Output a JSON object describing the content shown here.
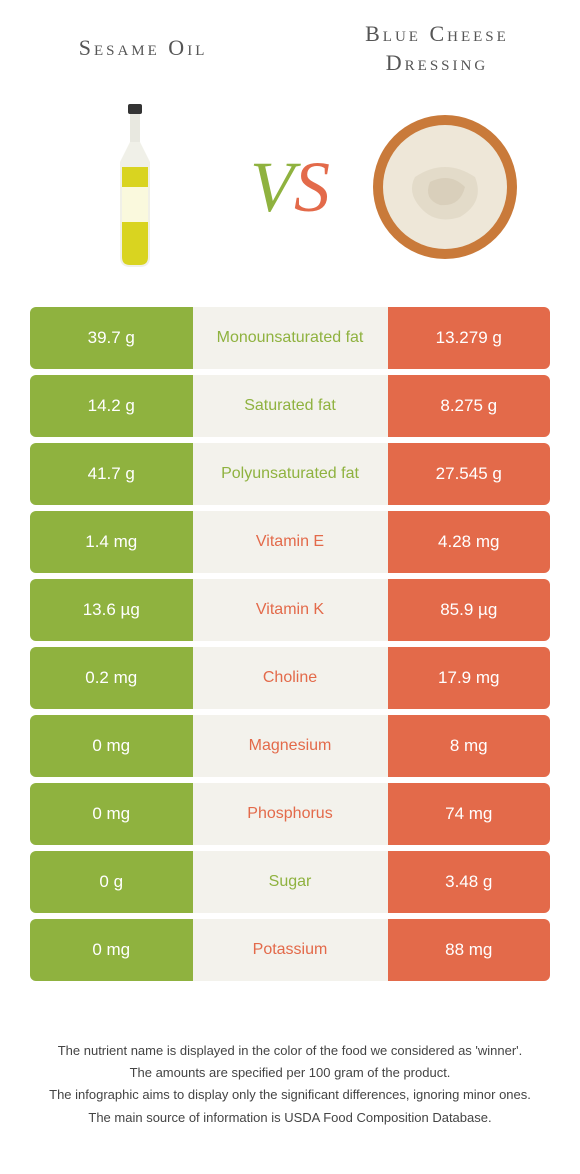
{
  "titles": {
    "left": "Sesame Oil",
    "right_line1": "Blue Cheese",
    "right_line2": "Dressing"
  },
  "vs": {
    "v": "V",
    "s": "S"
  },
  "colors": {
    "left": "#8fb23f",
    "right": "#e36a4a",
    "mid_bg": "#f3f2ec"
  },
  "rows": [
    {
      "left": "39.7 g",
      "label": "Monounsaturated fat",
      "right": "13.279 g",
      "winner": "left"
    },
    {
      "left": "14.2 g",
      "label": "Saturated fat",
      "right": "8.275 g",
      "winner": "left"
    },
    {
      "left": "41.7 g",
      "label": "Polyunsaturated fat",
      "right": "27.545 g",
      "winner": "left"
    },
    {
      "left": "1.4 mg",
      "label": "Vitamin E",
      "right": "4.28 mg",
      "winner": "right"
    },
    {
      "left": "13.6 µg",
      "label": "Vitamin K",
      "right": "85.9 µg",
      "winner": "right"
    },
    {
      "left": "0.2 mg",
      "label": "Choline",
      "right": "17.9 mg",
      "winner": "right"
    },
    {
      "left": "0 mg",
      "label": "Magnesium",
      "right": "8 mg",
      "winner": "right"
    },
    {
      "left": "0 mg",
      "label": "Phosphorus",
      "right": "74 mg",
      "winner": "right"
    },
    {
      "left": "0 g",
      "label": "Sugar",
      "right": "3.48 g",
      "winner": "left"
    },
    {
      "left": "0 mg",
      "label": "Potassium",
      "right": "88 mg",
      "winner": "right"
    }
  ],
  "footnotes": [
    "The nutrient name is displayed in the color of the food we considered as 'winner'.",
    "The amounts are specified per 100 gram of the product.",
    "The infographic aims to display only the significant differences, ignoring minor ones.",
    "The main source of information is USDA Food Composition Database."
  ]
}
